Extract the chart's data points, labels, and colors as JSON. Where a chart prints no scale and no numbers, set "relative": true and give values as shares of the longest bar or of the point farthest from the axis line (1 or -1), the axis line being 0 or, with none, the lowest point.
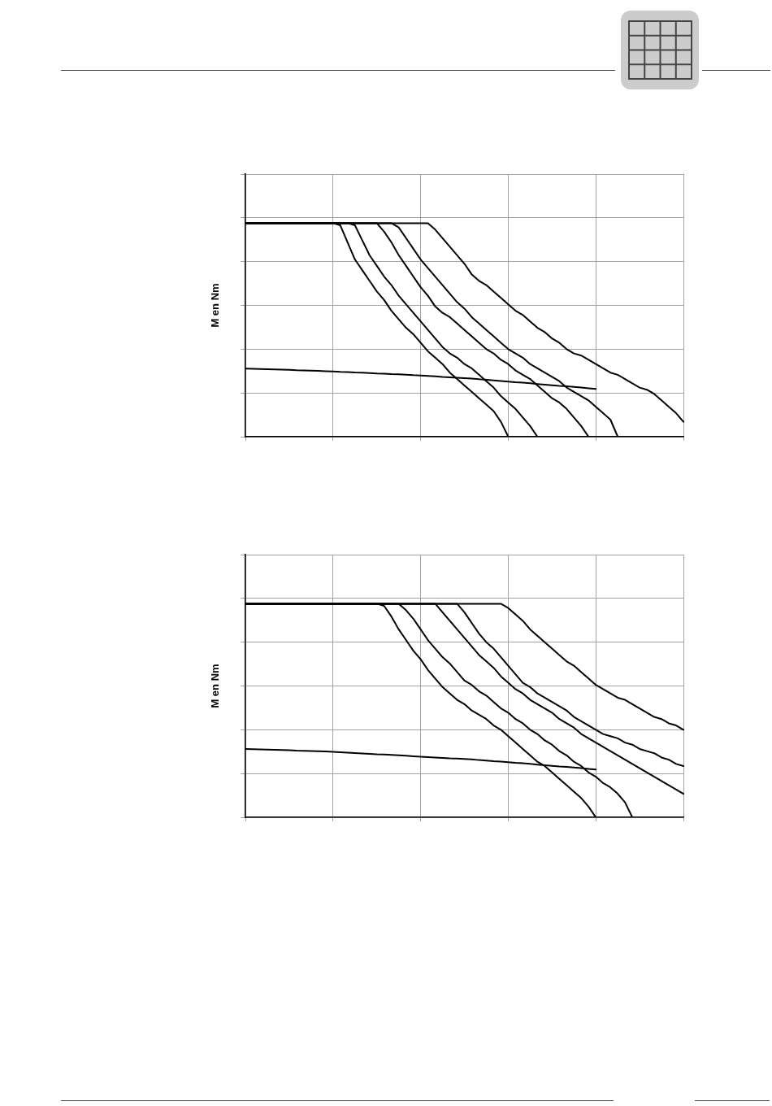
{
  "chart_data": [
    {
      "type": "line",
      "ylabel": "M en Nm",
      "relative": true,
      "grid": true,
      "line_style": "solid",
      "categories": [
        null,
        null,
        null,
        null,
        null,
        null,
        null,
        null,
        null,
        null,
        null,
        null,
        null,
        null,
        null,
        null,
        null,
        null,
        null,
        null,
        null,
        null,
        null,
        null,
        null,
        null,
        null,
        null,
        null,
        null,
        null,
        null,
        null,
        null,
        null,
        null,
        null,
        null,
        null,
        null,
        null,
        null,
        null,
        null,
        null,
        null,
        null,
        null,
        null,
        null,
        null,
        null,
        null,
        null,
        null,
        null,
        null,
        null,
        null,
        null,
        null
      ],
      "series": [
        {
          "color": "#000000",
          "values": [
            1,
            1,
            1,
            1,
            1,
            1,
            1,
            1,
            1,
            1,
            1,
            1,
            1,
            0.99,
            0.91,
            0.83,
            0.78,
            0.73,
            0.68,
            0.64,
            0.59,
            0.55,
            0.51,
            0.48,
            0.44,
            0.4,
            0.37,
            0.34,
            0.3,
            0.27,
            0.24,
            0.21,
            0.18,
            0.15,
            0.12,
            0.07,
            0,
            null,
            null,
            null,
            null,
            null,
            null,
            null,
            null,
            null,
            null,
            null,
            null,
            null,
            null,
            null,
            null,
            null,
            null,
            null,
            null,
            null,
            null,
            null,
            null
          ]
        },
        {
          "color": "#000000",
          "values": [
            1,
            1,
            1,
            1,
            1,
            1,
            1,
            1,
            1,
            1,
            1,
            1,
            1,
            1,
            1,
            0.99,
            0.92,
            0.85,
            0.8,
            0.75,
            0.71,
            0.66,
            0.62,
            0.58,
            0.54,
            0.5,
            0.46,
            0.42,
            0.39,
            0.37,
            0.34,
            0.32,
            0.29,
            0.26,
            0.23,
            0.19,
            0.16,
            0.13,
            0.09,
            0.05,
            0,
            null,
            null,
            null,
            null,
            null,
            null,
            null,
            null,
            null,
            null,
            null,
            null,
            null,
            null,
            null,
            null,
            null,
            null,
            null,
            null
          ]
        },
        {
          "color": "#000000",
          "values": [
            1,
            1,
            1,
            1,
            1,
            1,
            1,
            1,
            1,
            1,
            1,
            1,
            1,
            1,
            1,
            1,
            1,
            1,
            1,
            0.96,
            0.91,
            0.85,
            0.8,
            0.75,
            0.7,
            0.66,
            0.61,
            0.58,
            0.56,
            0.53,
            0.5,
            0.47,
            0.44,
            0.41,
            0.39,
            0.36,
            0.34,
            0.31,
            0.29,
            0.27,
            0.24,
            0.21,
            0.18,
            0.16,
            0.13,
            0.09,
            0.05,
            0,
            null,
            null,
            null,
            null,
            null,
            null,
            null,
            null,
            null,
            null,
            null,
            null,
            null
          ]
        },
        {
          "color": "#000000",
          "values": [
            1,
            1,
            1,
            1,
            1,
            1,
            1,
            1,
            1,
            1,
            1,
            1,
            1,
            1,
            1,
            1,
            1,
            1,
            1,
            1,
            1,
            0.98,
            0.93,
            0.88,
            0.83,
            0.79,
            0.75,
            0.71,
            0.67,
            0.63,
            0.6,
            0.56,
            0.53,
            0.5,
            0.47,
            0.44,
            0.41,
            0.39,
            0.37,
            0.34,
            0.32,
            0.3,
            0.28,
            0.26,
            0.23,
            0.21,
            0.19,
            0.17,
            0.14,
            0.11,
            0.08,
            0,
            null,
            null,
            null,
            null,
            null,
            null,
            null,
            null,
            null
          ]
        },
        {
          "color": "#000000",
          "values": [
            1,
            1,
            1,
            1,
            1,
            1,
            1,
            1,
            1,
            1,
            1,
            1,
            1,
            1,
            1,
            1,
            1,
            1,
            1,
            1,
            1,
            1,
            1,
            1,
            1,
            1,
            0.97,
            0.93,
            0.89,
            0.85,
            0.81,
            0.76,
            0.73,
            0.71,
            0.68,
            0.65,
            0.62,
            0.59,
            0.57,
            0.54,
            0.51,
            0.49,
            0.46,
            0.44,
            0.41,
            0.39,
            0.38,
            0.36,
            0.34,
            0.32,
            0.3,
            0.29,
            0.27,
            0.25,
            0.23,
            0.22,
            0.2,
            0.17,
            0.14,
            0.11,
            0.07
          ]
        },
        {
          "color": "#000000",
          "values": [
            0.319,
            0.318,
            0.317,
            0.316,
            0.315,
            0.314,
            0.313,
            0.311,
            0.31,
            0.309,
            0.308,
            0.307,
            0.306,
            0.304,
            0.303,
            0.301,
            0.3,
            0.298,
            0.296,
            0.295,
            0.293,
            0.292,
            0.29,
            0.288,
            0.287,
            0.285,
            0.283,
            0.28,
            0.278,
            0.276,
            0.274,
            0.272,
            0.269,
            0.267,
            0.264,
            0.261,
            0.258,
            0.255,
            0.253,
            0.25,
            0.247,
            0.244,
            0.241,
            0.238,
            0.236,
            0.233,
            0.23,
            0.227,
            0.224,
            null,
            null,
            null,
            null,
            null,
            null,
            null,
            null,
            null,
            null,
            null,
            null
          ]
        }
      ]
    },
    {
      "type": "line",
      "ylabel": "M en Nm",
      "relative": true,
      "grid": true,
      "line_style": "solid",
      "categories": [
        null,
        null,
        null,
        null,
        null,
        null,
        null,
        null,
        null,
        null,
        null,
        null,
        null,
        null,
        null,
        null,
        null,
        null,
        null,
        null,
        null,
        null,
        null,
        null,
        null,
        null,
        null,
        null,
        null,
        null,
        null,
        null,
        null,
        null,
        null,
        null,
        null,
        null,
        null,
        null,
        null,
        null,
        null,
        null,
        null,
        null,
        null,
        null,
        null,
        null,
        null,
        null,
        null,
        null,
        null,
        null,
        null,
        null,
        null,
        null,
        null
      ],
      "series": [
        {
          "color": "#000000",
          "values": [
            1,
            1,
            1,
            1,
            1,
            1,
            1,
            1,
            1,
            1,
            1,
            1,
            1,
            1,
            1,
            1,
            1,
            1,
            1,
            0.99,
            0.94,
            0.88,
            0.83,
            0.78,
            0.74,
            0.69,
            0.65,
            0.61,
            0.58,
            0.55,
            0.53,
            0.5,
            0.48,
            0.46,
            0.43,
            0.41,
            0.38,
            0.35,
            0.32,
            0.29,
            0.26,
            0.24,
            0.21,
            0.18,
            0.15,
            0.12,
            0.09,
            0.05,
            0,
            null,
            null,
            null,
            null,
            null,
            null,
            null,
            null,
            null,
            null,
            null,
            null
          ]
        },
        {
          "color": "#000000",
          "values": [
            1,
            1,
            1,
            1,
            1,
            1,
            1,
            1,
            1,
            1,
            1,
            1,
            1,
            1,
            1,
            1,
            1,
            1,
            1,
            1,
            1,
            1,
            0.97,
            0.93,
            0.88,
            0.83,
            0.79,
            0.75,
            0.72,
            0.68,
            0.64,
            0.62,
            0.59,
            0.57,
            0.54,
            0.51,
            0.49,
            0.46,
            0.44,
            0.41,
            0.39,
            0.36,
            0.34,
            0.31,
            0.29,
            0.26,
            0.24,
            0.21,
            0.19,
            0.16,
            0.14,
            0.11,
            0.07,
            0,
            null,
            null,
            null,
            null,
            null,
            null,
            null
          ]
        },
        {
          "color": "#000000",
          "values": [
            1,
            1,
            1,
            1,
            1,
            1,
            1,
            1,
            1,
            1,
            1,
            1,
            1,
            1,
            1,
            1,
            1,
            1,
            1,
            1,
            1,
            1,
            1,
            1,
            1,
            1,
            1,
            0.96,
            0.92,
            0.88,
            0.84,
            0.8,
            0.76,
            0.73,
            0.7,
            0.66,
            0.63,
            0.6,
            0.58,
            0.55,
            0.53,
            0.51,
            0.49,
            0.46,
            0.44,
            0.42,
            0.39,
            0.37,
            0.35,
            0.33,
            0.31,
            0.29,
            0.27,
            0.25,
            0.23,
            0.21,
            0.19,
            0.17,
            0.15,
            0.13,
            0.11
          ]
        },
        {
          "color": "#000000",
          "values": [
            1,
            1,
            1,
            1,
            1,
            1,
            1,
            1,
            1,
            1,
            1,
            1,
            1,
            1,
            1,
            1,
            1,
            1,
            1,
            1,
            1,
            1,
            1,
            1,
            1,
            1,
            1,
            1,
            1,
            1,
            0.96,
            0.91,
            0.86,
            0.82,
            0.79,
            0.75,
            0.71,
            0.67,
            0.63,
            0.61,
            0.58,
            0.56,
            0.54,
            0.52,
            0.5,
            0.47,
            0.45,
            0.43,
            0.41,
            0.39,
            0.38,
            0.37,
            0.35,
            0.34,
            0.32,
            0.31,
            0.3,
            0.28,
            0.27,
            0.25,
            0.24
          ]
        },
        {
          "color": "#000000",
          "values": [
            1,
            1,
            1,
            1,
            1,
            1,
            1,
            1,
            1,
            1,
            1,
            1,
            1,
            1,
            1,
            1,
            1,
            1,
            1,
            1,
            1,
            1,
            1,
            1,
            1,
            1,
            1,
            1,
            1,
            1,
            1,
            1,
            1,
            1,
            1,
            1,
            0.98,
            0.95,
            0.92,
            0.88,
            0.85,
            0.82,
            0.79,
            0.76,
            0.73,
            0.71,
            0.68,
            0.65,
            0.62,
            0.6,
            0.58,
            0.56,
            0.55,
            0.53,
            0.51,
            0.49,
            0.47,
            0.46,
            0.44,
            0.43,
            0.41
          ]
        },
        {
          "color": "#000000",
          "values": [
            0.32,
            0.319,
            0.318,
            0.317,
            0.316,
            0.315,
            0.314,
            0.312,
            0.311,
            0.31,
            0.309,
            0.308,
            0.307,
            0.305,
            0.303,
            0.301,
            0.299,
            0.297,
            0.295,
            0.294,
            0.292,
            0.29,
            0.288,
            0.286,
            0.284,
            0.282,
            0.28,
            0.278,
            0.276,
            0.275,
            0.273,
            0.271,
            0.268,
            0.266,
            0.263,
            0.261,
            0.258,
            0.255,
            0.253,
            0.25,
            0.247,
            0.244,
            0.241,
            0.238,
            0.236,
            0.233,
            0.23,
            0.227,
            0.224,
            null,
            null,
            null,
            null,
            null,
            null,
            null,
            null,
            null,
            null,
            null,
            null
          ]
        }
      ]
    }
  ]
}
